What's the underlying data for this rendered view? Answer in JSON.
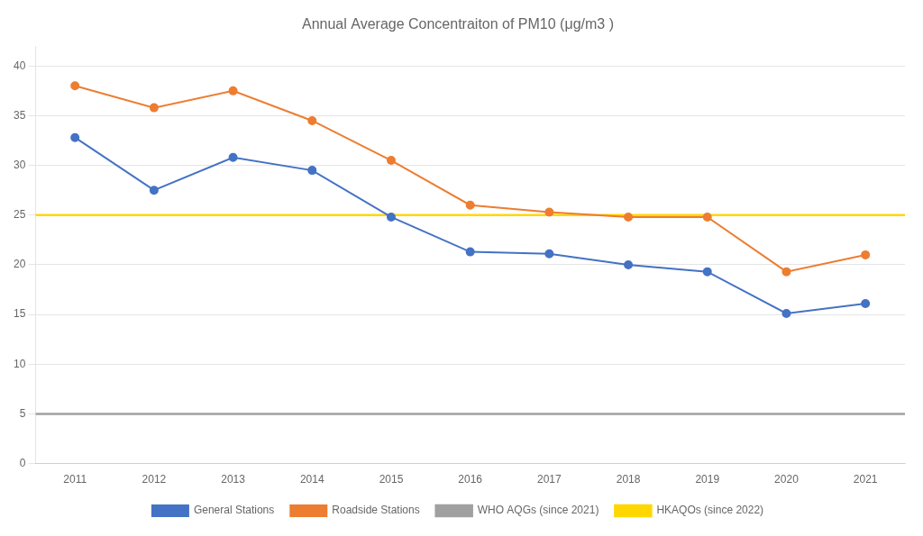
{
  "chart_data": {
    "type": "line",
    "title": "Annual Average Concentraiton of PM10 (μg/m3 )",
    "x": [
      2011,
      2012,
      2013,
      2014,
      2015,
      2016,
      2017,
      2018,
      2019,
      2020,
      2021
    ],
    "xlim": [
      2010.5,
      2021.5
    ],
    "xticks": [
      2011,
      2012,
      2013,
      2014,
      2015,
      2016,
      2017,
      2018,
      2019,
      2020,
      2021
    ],
    "ylim": [
      0,
      42
    ],
    "yticks": [
      0,
      5,
      10,
      15,
      20,
      25,
      30,
      35,
      40
    ],
    "grid": "y",
    "legend": "bottom",
    "series": [
      {
        "name": "General Stations",
        "color": "#4472C4",
        "marker": "circle",
        "values": [
          32.8,
          27.5,
          30.8,
          29.5,
          24.8,
          21.3,
          21.1,
          20.0,
          19.3,
          15.1,
          16.1
        ]
      },
      {
        "name": "Roadside Stations",
        "color": "#ED7D31",
        "marker": "circle",
        "values": [
          38.0,
          35.8,
          37.5,
          34.5,
          30.5,
          26.0,
          25.3,
          24.8,
          24.8,
          19.3,
          21.0
        ]
      },
      {
        "name": "WHO AQGs (since 2021)",
        "color": "#a0a0a0",
        "type": "hline",
        "marker": "none",
        "value": 5
      },
      {
        "name": "HKAQOs (since 2022)",
        "color": "#FFD700",
        "type": "hline",
        "marker": "none",
        "value": 25
      }
    ]
  }
}
